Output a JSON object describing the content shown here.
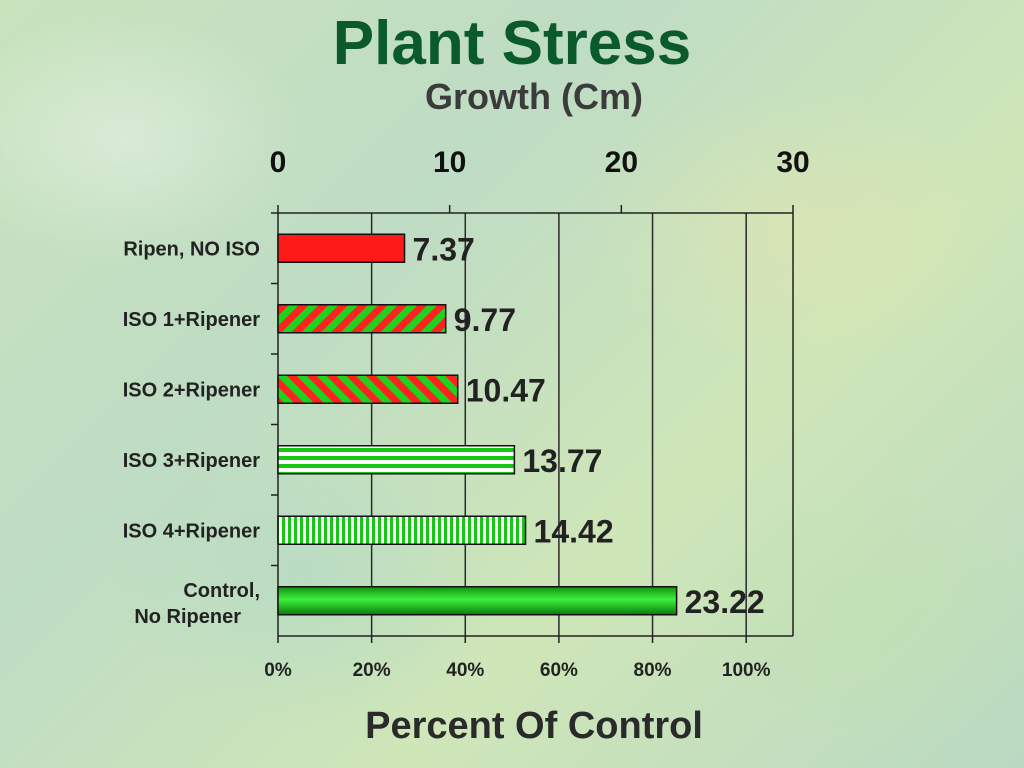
{
  "chart_data": {
    "type": "bar",
    "orientation": "horizontal",
    "title": "Plant Stress",
    "subtitle": "Growth (Cm)",
    "xlabel": "Percent Of Control",
    "top_axis": {
      "ticks": [
        "0",
        "10",
        "20",
        "30"
      ],
      "range": [
        0,
        30
      ]
    },
    "bottom_axis": {
      "ticks": [
        "0%",
        "20%",
        "40%",
        "60%",
        "80%",
        "100%"
      ],
      "range": [
        0,
        110
      ]
    },
    "categories": [
      "Ripen, NO ISO",
      "ISO 1+Ripener",
      "ISO 2+Ripener",
      "ISO 3+Ripener",
      "ISO 4+Ripener",
      "Control, No Ripener"
    ],
    "values": [
      7.37,
      9.77,
      10.47,
      13.77,
      14.42,
      23.22
    ],
    "data_labels": [
      "7.37",
      "9.77",
      "10.47",
      "13.77",
      "14.42",
      "23.22"
    ],
    "fills": [
      "solid-red",
      "stripe-green-red-diag-right",
      "stripe-green-red-diag-left",
      "stripe-green-white-horizontal",
      "stripe-green-white-vertical",
      "gradient-green"
    ],
    "grid": "vertical",
    "colors": {
      "red": "#ff1a1a",
      "green": "#14c814",
      "dark_green": "#0b5a2c"
    }
  }
}
